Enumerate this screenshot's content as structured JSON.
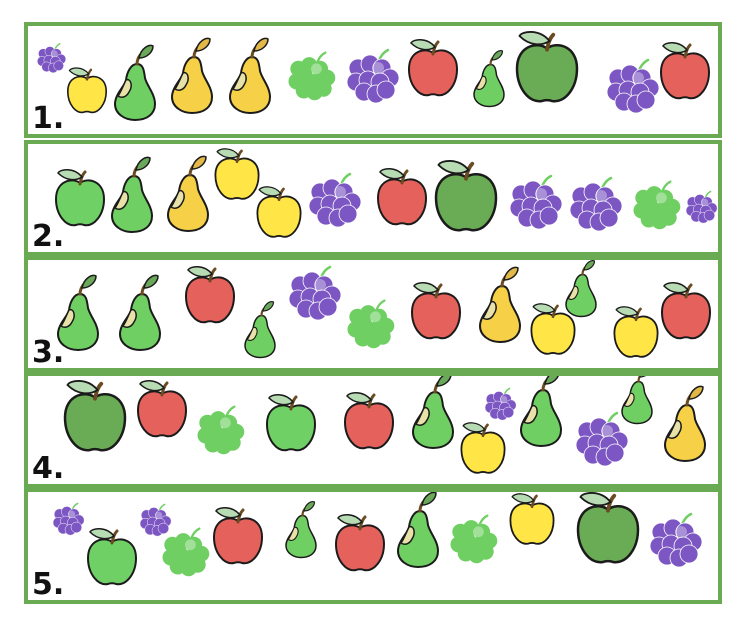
{
  "colors": {
    "border": "#6aaa52",
    "apple_red": "#e5615c",
    "apple_green": "#6fd165",
    "apple_dark_green": "#6aab55",
    "apple_yellow": "#ffe545",
    "pear_green": "#6fcf63",
    "pear_yellow": "#f6d147",
    "grape_purple": "#7c56c2",
    "grape_green": "#6fcf63",
    "leaf": "#b7dbb3"
  },
  "rows": [
    {
      "label": "1.",
      "fruits": [
        "small-purple-grapes",
        "yellow-apple",
        "green-pear",
        "yellow-pear",
        "yellow-pear",
        "green-grapes",
        "purple-grapes",
        "red-apple",
        "small-green-pear",
        "large-dark-green-apple",
        "purple-grapes",
        "red-apple"
      ]
    },
    {
      "label": "2.",
      "fruits": [
        "green-apple",
        "green-pear",
        "yellow-pear",
        "yellow-apple",
        "yellow-apple",
        "purple-grapes",
        "red-apple",
        "large-dark-green-apple",
        "purple-grapes",
        "purple-grapes",
        "green-grapes",
        "small-purple-grapes"
      ]
    },
    {
      "label": "3.",
      "fruits": [
        "green-pear",
        "green-pear",
        "red-apple",
        "small-green-pear",
        "purple-grapes",
        "green-grapes",
        "red-apple",
        "yellow-pear",
        "yellow-apple",
        "small-green-pear",
        "yellow-apple",
        "red-apple"
      ]
    },
    {
      "label": "4.",
      "fruits": [
        "large-dark-green-apple",
        "red-apple",
        "green-grapes",
        "green-apple",
        "red-apple",
        "green-pear",
        "yellow-apple",
        "small-purple-grapes",
        "green-pear",
        "purple-grapes",
        "small-green-pear",
        "yellow-pear"
      ]
    },
    {
      "label": "5.",
      "fruits": [
        "small-purple-grapes",
        "green-apple",
        "small-purple-grapes",
        "green-grapes",
        "red-apple",
        "small-green-pear",
        "red-apple",
        "green-pear",
        "green-grapes",
        "yellow-apple",
        "large-dark-green-apple",
        "purple-grapes"
      ]
    }
  ]
}
